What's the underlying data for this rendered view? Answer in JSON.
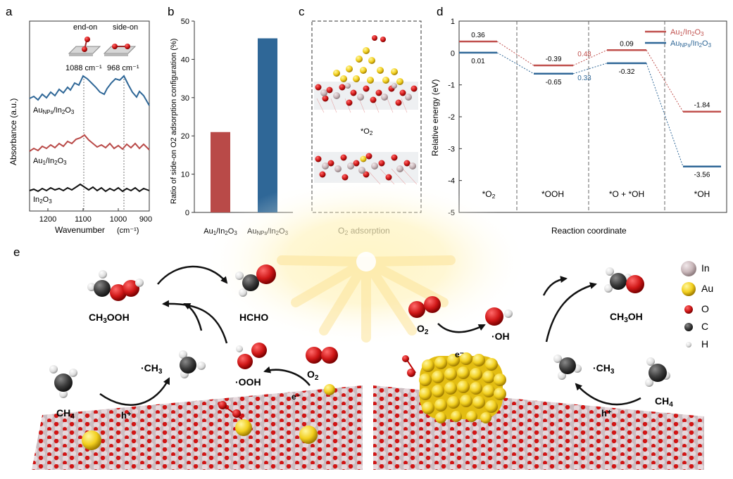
{
  "panel_letters": {
    "a": "a",
    "b": "b",
    "c": "c",
    "d": "d",
    "e": "e"
  },
  "panel_a": {
    "ylabel": "Absorbance (a.u.)",
    "xlabel": "Wavenumber",
    "xunit": "(cm⁻¹)",
    "xticks": [
      "1200",
      "1100",
      "1000",
      "900"
    ],
    "inset_end_on": "end-on",
    "inset_side_on": "side-on",
    "peak1": "1088 cm⁻¹",
    "peak2": "968 cm⁻¹",
    "trace_labels": [
      "AuNPs/In2O3",
      "Au1/In2O3",
      "In2O3"
    ],
    "colors": {
      "aunps": "#2f6797",
      "au1": "#b94a48",
      "in2o3": "#111111"
    }
  },
  "chart_data": [
    {
      "type": "bar",
      "title": "",
      "ylabel": "Ratio of side-on O2 adsorption configuration (%)",
      "categories": [
        "Au1/In2O3",
        "AuNPs/In2O3"
      ],
      "values": [
        21,
        45.5
      ],
      "ylim": [
        0,
        50
      ],
      "yticks": [
        "0",
        "10",
        "20",
        "30",
        "40",
        "50"
      ],
      "colors": [
        "#b94a48",
        "#2f6797"
      ]
    },
    {
      "type": "line",
      "title": "",
      "ylabel": "Relative energy (eV)",
      "xlabel": "Reaction coordinate",
      "ylim": [
        -5,
        1
      ],
      "yticks": [
        "1",
        "0",
        "-1",
        "-2",
        "-3",
        "-4",
        "-5"
      ],
      "categories": [
        "*O2",
        "*OOH",
        "*O + *OH",
        "*OH"
      ],
      "series": [
        {
          "name": "Au1/In2O3",
          "color": "#c0504d",
          "values": [
            0.36,
            -0.39,
            0.09,
            -1.84
          ],
          "labels": [
            "0.36",
            "-0.39",
            "0.09",
            "-1.84"
          ]
        },
        {
          "name": "AuNPs/In2O3",
          "color": "#2f6797",
          "values": [
            0.01,
            -0.65,
            -0.32,
            -3.56
          ],
          "labels": [
            "0.01",
            "-0.65",
            "-0.32",
            "-3.56"
          ]
        }
      ],
      "annotations": [
        {
          "text": "0.48",
          "color": "#c0504d"
        },
        {
          "text": "0.33",
          "color": "#2f6797"
        }
      ],
      "legend": "top-right"
    }
  ],
  "panel_c": {
    "label_o2": "*O2",
    "caption": "O2 adsorption"
  },
  "panel_e": {
    "left": {
      "ch3ooh": "CH3OOH",
      "hcho": "HCHO",
      "ch3": "·CH3",
      "ooh": "·OOH",
      "o2": "O2",
      "ch4": "CH4",
      "h": "h⁺",
      "e": "e⁻"
    },
    "right": {
      "o2": "O2",
      "oh": "·OH",
      "ch3oh": "CH3OH",
      "ch3": "·CH3",
      "ch4": "CH4",
      "h": "h⁺",
      "e": "e⁻"
    },
    "legend": [
      "In",
      "Au",
      "O",
      "C",
      "H"
    ]
  }
}
